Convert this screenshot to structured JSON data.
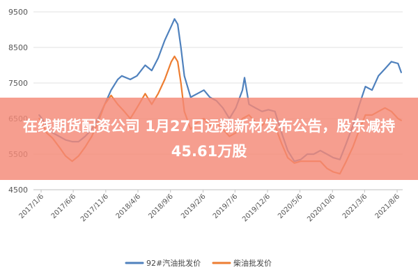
{
  "chart_data": {
    "type": "line",
    "title": "",
    "xlabel": "",
    "ylabel": "",
    "ylim": [
      4500,
      9500
    ],
    "yticks": [
      4500,
      5500,
      6500,
      7500,
      8500,
      9500
    ],
    "xlim": [
      "2016-12",
      "2021-09"
    ],
    "xticks": [
      "2017/1/6",
      "2017/6/6",
      "2017/11/6",
      "2018/4/6",
      "2018/9/6",
      "2019/2/6",
      "2019/7/6",
      "2019/12/6",
      "2020/5/6",
      "2020/10/6",
      "2021/3/6",
      "2021/8/6"
    ],
    "grid": "horizontal",
    "legend_position": "bottom",
    "series": [
      {
        "name": "92#汽油批发价",
        "color": "#4f81bd",
        "points": [
          [
            "2016-12-28",
            6600
          ],
          [
            "2017-01-10",
            6500
          ],
          [
            "2017-02-01",
            6300
          ],
          [
            "2017-03-01",
            6100
          ],
          [
            "2017-04-01",
            6000
          ],
          [
            "2017-05-01",
            5900
          ],
          [
            "2017-06-01",
            5850
          ],
          [
            "2017-07-01",
            5850
          ],
          [
            "2017-08-01",
            6000
          ],
          [
            "2017-09-01",
            6200
          ],
          [
            "2017-10-01",
            6500
          ],
          [
            "2017-11-01",
            6900
          ],
          [
            "2017-12-01",
            7300
          ],
          [
            "2018-01-01",
            7600
          ],
          [
            "2018-01-20",
            7700
          ],
          [
            "2018-03-01",
            7600
          ],
          [
            "2018-04-01",
            7700
          ],
          [
            "2018-05-10",
            8000
          ],
          [
            "2018-06-10",
            7850
          ],
          [
            "2018-07-10",
            8200
          ],
          [
            "2018-08-10",
            8700
          ],
          [
            "2018-09-10",
            9100
          ],
          [
            "2018-09-25",
            9300
          ],
          [
            "2018-10-10",
            9150
          ],
          [
            "2018-10-25",
            8500
          ],
          [
            "2018-11-10",
            7700
          ],
          [
            "2018-12-10",
            7100
          ],
          [
            "2019-01-10",
            7200
          ],
          [
            "2019-02-10",
            7300
          ],
          [
            "2019-03-10",
            7100
          ],
          [
            "2019-04-10",
            7000
          ],
          [
            "2019-05-10",
            6800
          ],
          [
            "2019-06-10",
            6500
          ],
          [
            "2019-07-10",
            6800
          ],
          [
            "2019-08-10",
            7300
          ],
          [
            "2019-08-20",
            7650
          ],
          [
            "2019-09-10",
            6900
          ],
          [
            "2019-10-10",
            6800
          ],
          [
            "2019-11-10",
            6700
          ],
          [
            "2019-12-10",
            6750
          ],
          [
            "2020-01-10",
            6700
          ],
          [
            "2020-02-10",
            6100
          ],
          [
            "2020-03-10",
            5600
          ],
          [
            "2020-04-10",
            5300
          ],
          [
            "2020-05-10",
            5350
          ],
          [
            "2020-06-10",
            5500
          ],
          [
            "2020-07-10",
            5500
          ],
          [
            "2020-08-10",
            5600
          ],
          [
            "2020-09-10",
            5500
          ],
          [
            "2020-10-10",
            5400
          ],
          [
            "2020-11-10",
            5350
          ],
          [
            "2020-12-10",
            5800
          ],
          [
            "2021-01-10",
            6300
          ],
          [
            "2021-02-10",
            6900
          ],
          [
            "2021-03-10",
            7400
          ],
          [
            "2021-04-10",
            7300
          ],
          [
            "2021-05-10",
            7700
          ],
          [
            "2021-06-10",
            7900
          ],
          [
            "2021-07-10",
            8100
          ],
          [
            "2021-08-10",
            8050
          ],
          [
            "2021-08-25",
            7800
          ]
        ]
      },
      {
        "name": "柴油批发价",
        "color": "#ed7d31",
        "points": [
          [
            "2016-12-28",
            6500
          ],
          [
            "2017-01-10",
            6400
          ],
          [
            "2017-02-01",
            6100
          ],
          [
            "2017-03-01",
            5950
          ],
          [
            "2017-04-01",
            5700
          ],
          [
            "2017-05-01",
            5450
          ],
          [
            "2017-06-01",
            5300
          ],
          [
            "2017-07-01",
            5450
          ],
          [
            "2017-08-01",
            5700
          ],
          [
            "2017-09-01",
            6000
          ],
          [
            "2017-10-01",
            6400
          ],
          [
            "2017-11-01",
            6900
          ],
          [
            "2017-12-01",
            7150
          ],
          [
            "2018-01-01",
            6900
          ],
          [
            "2018-02-01",
            6700
          ],
          [
            "2018-03-01",
            6500
          ],
          [
            "2018-04-01",
            6800
          ],
          [
            "2018-05-10",
            7200
          ],
          [
            "2018-06-10",
            6900
          ],
          [
            "2018-07-10",
            7200
          ],
          [
            "2018-08-10",
            7600
          ],
          [
            "2018-09-10",
            8100
          ],
          [
            "2018-09-25",
            8250
          ],
          [
            "2018-10-10",
            8100
          ],
          [
            "2018-10-25",
            7500
          ],
          [
            "2018-11-10",
            6700
          ],
          [
            "2018-12-10",
            6200
          ],
          [
            "2019-01-10",
            6400
          ],
          [
            "2019-02-10",
            6500
          ],
          [
            "2019-03-10",
            6300
          ],
          [
            "2019-04-10",
            6400
          ],
          [
            "2019-05-10",
            6200
          ],
          [
            "2019-06-10",
            6000
          ],
          [
            "2019-07-10",
            6100
          ],
          [
            "2019-08-10",
            6500
          ],
          [
            "2019-09-10",
            6600
          ],
          [
            "2019-10-10",
            6400
          ],
          [
            "2019-11-10",
            6300
          ],
          [
            "2019-12-10",
            6500
          ],
          [
            "2020-01-10",
            6300
          ],
          [
            "2020-02-10",
            5800
          ],
          [
            "2020-03-10",
            5400
          ],
          [
            "2020-04-10",
            5250
          ],
          [
            "2020-05-10",
            5300
          ],
          [
            "2020-06-10",
            5300
          ],
          [
            "2020-07-10",
            5300
          ],
          [
            "2020-08-10",
            5300
          ],
          [
            "2020-09-10",
            5100
          ],
          [
            "2020-10-10",
            5000
          ],
          [
            "2020-11-10",
            4950
          ],
          [
            "2020-12-10",
            5300
          ],
          [
            "2021-01-10",
            5700
          ],
          [
            "2021-02-10",
            6200
          ],
          [
            "2021-03-10",
            6600
          ],
          [
            "2021-04-10",
            6600
          ],
          [
            "2021-05-10",
            6700
          ],
          [
            "2021-06-10",
            6800
          ],
          [
            "2021-07-10",
            6700
          ],
          [
            "2021-08-10",
            6500
          ],
          [
            "2021-08-25",
            6450
          ]
        ]
      }
    ]
  },
  "headline": "在线期货配资公司 1月27日远翔新材发布公告，股东减持45.61万股"
}
